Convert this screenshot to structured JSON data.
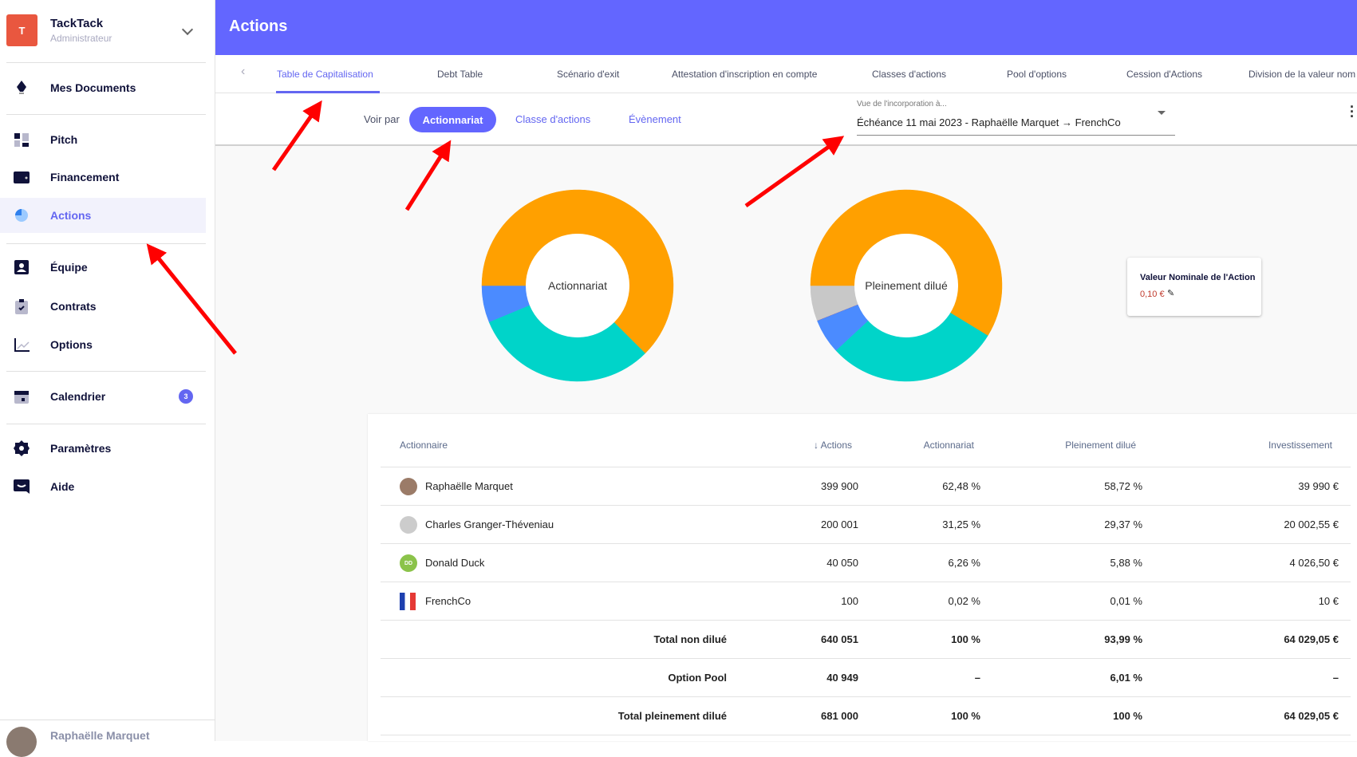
{
  "sidebar": {
    "org": {
      "initial": "T",
      "name": "TackTack",
      "role": "Administrateur"
    },
    "items": [
      {
        "label": "Mes Documents",
        "icon": "pen-nib-icon"
      },
      {
        "label": "Pitch",
        "icon": "dashboard-icon"
      },
      {
        "label": "Financement",
        "icon": "wallet-icon"
      },
      {
        "label": "Actions",
        "icon": "pie-chart-icon",
        "active": true
      },
      {
        "label": "Équipe",
        "icon": "user-badge-icon"
      },
      {
        "label": "Contrats",
        "icon": "clipboard-check-icon"
      },
      {
        "label": "Options",
        "icon": "line-chart-icon"
      },
      {
        "label": "Calendrier",
        "icon": "calendar-icon",
        "badge": "3"
      },
      {
        "label": "Paramètres",
        "icon": "gear-icon"
      },
      {
        "label": "Aide",
        "icon": "chat-icon"
      }
    ],
    "user": {
      "name": "Raphaëlle Marquet"
    }
  },
  "header": {
    "title": "Actions"
  },
  "tabs": [
    "Table de Capitalisation",
    "Debt Table",
    "Scénario d'exit",
    "Attestation d'inscription en compte",
    "Classes d'actions",
    "Pool d'options",
    "Cession d'Actions",
    "Division de la valeur nom"
  ],
  "filters": {
    "voir_par": "Voir par",
    "options": [
      "Actionnariat",
      "Classe d'actions",
      "Évènement"
    ],
    "dropdown_label": "Vue de l'incorporation à...",
    "dropdown_value": "Échéance 11 mai 2023 - Raphaëlle Marquet → FrenchCo"
  },
  "charts": [
    {
      "type": "pie",
      "center_label": "Actionnariat",
      "slices": [
        {
          "name": "Raphaëlle Marquet",
          "value": 62.48,
          "color": "#ffa000"
        },
        {
          "name": "Charles Granger-Théveniau",
          "value": 31.25,
          "color": "#00d4c9"
        },
        {
          "name": "Donald Duck",
          "value": 6.26,
          "color": "#4b8bff"
        },
        {
          "name": "FrenchCo",
          "value": 0.02,
          "color": "#e53935"
        }
      ]
    },
    {
      "type": "pie",
      "center_label": "Pleinement dilué",
      "slices": [
        {
          "name": "Raphaëlle Marquet",
          "value": 58.72,
          "color": "#ffa000"
        },
        {
          "name": "Charles Granger-Théveniau",
          "value": 29.37,
          "color": "#00d4c9"
        },
        {
          "name": "Donald Duck",
          "value": 5.88,
          "color": "#4b8bff"
        },
        {
          "name": "FrenchCo",
          "value": 0.01,
          "color": "#e53935"
        },
        {
          "name": "Option Pool",
          "value": 6.01,
          "color": "#c8c8c8"
        }
      ]
    }
  ],
  "nominal": {
    "title": "Valeur Nominale de l'Action",
    "value": "0,10 €"
  },
  "table": {
    "headers": [
      "Actionnaire",
      "Actions",
      "Actionnariat",
      "Pleinement dilué",
      "Investissement"
    ],
    "rows": [
      {
        "name": "Raphaëlle Marquet",
        "actions": "399 900",
        "actionnariat": "62,48 %",
        "dilue": "58,72 %",
        "invest": "39 990 €"
      },
      {
        "name": "Charles Granger-Théveniau",
        "actions": "200 001",
        "actionnariat": "31,25 %",
        "dilue": "29,37 %",
        "invest": "20 002,55 €"
      },
      {
        "name": "Donald Duck",
        "initials": "DD",
        "actions": "40 050",
        "actionnariat": "6,26 %",
        "dilue": "5,88 %",
        "invest": "4 026,50 €"
      },
      {
        "name": "FrenchCo",
        "actions": "100",
        "actionnariat": "0,02 %",
        "dilue": "0,01 %",
        "invest": "10 €"
      }
    ],
    "totals": [
      {
        "label": "Total non dilué",
        "actions": "640 051",
        "actionnariat": "100 %",
        "dilue": "93,99 %",
        "invest": "64 029,05 €"
      },
      {
        "label": "Option Pool",
        "actions": "40 949",
        "actionnariat": "–",
        "dilue": "6,01 %",
        "invest": "–"
      },
      {
        "label": "Total pleinement dilué",
        "actions": "681 000",
        "actionnariat": "100 %",
        "dilue": "100 %",
        "invest": "64 029,05 €"
      }
    ]
  }
}
